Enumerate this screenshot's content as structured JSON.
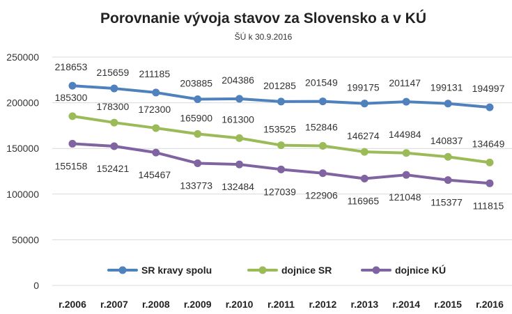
{
  "chart_data": {
    "type": "line",
    "title": "Porovnanie vývoja stavov za Slovensko a v KÚ",
    "subtitle": "ŠÚ k 30.9.2016",
    "categories": [
      "r.2006",
      "r.2007",
      "r.2008",
      "r.2009",
      "r.2010",
      "r.2011",
      "r.2012",
      "r.2013",
      "r.2014",
      "r.2015",
      "r.2016"
    ],
    "ylim": [
      0,
      250000
    ],
    "yticks": [
      "0",
      "50000",
      "100000",
      "150000",
      "200000",
      "250000"
    ],
    "grid": true,
    "legend": "bottom",
    "series": [
      {
        "name": "SR kravy spolu",
        "color": "#4f81bd",
        "label_position": "above",
        "values": [
          218653,
          215659,
          211185,
          203885,
          204386,
          201285,
          201549,
          199175,
          201147,
          199131,
          194997
        ]
      },
      {
        "name": "dojnice SR",
        "color": "#9bbb59",
        "label_position": "above",
        "values": [
          185300,
          178300,
          172300,
          165900,
          161300,
          153525,
          152846,
          146274,
          144984,
          140837,
          134649
        ]
      },
      {
        "name": "dojnice KÚ",
        "color": "#8064a2",
        "label_position": "below",
        "values": [
          155158,
          152421,
          145467,
          133773,
          132484,
          127039,
          122906,
          116965,
          121048,
          115377,
          111815
        ]
      }
    ]
  }
}
